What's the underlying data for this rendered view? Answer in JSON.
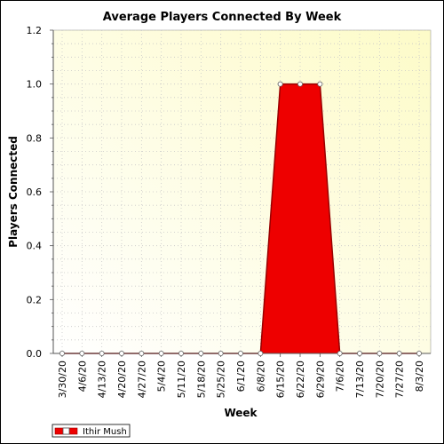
{
  "chart_data": {
    "type": "area",
    "title": "Average Players Connected By Week",
    "xlabel": "Week",
    "ylabel": "Players Connected",
    "categories": [
      "3/30/20",
      "4/6/20",
      "4/13/20",
      "4/20/20",
      "4/27/20",
      "5/4/20",
      "5/11/20",
      "5/18/20",
      "5/25/20",
      "6/1/20",
      "6/8/20",
      "6/15/20",
      "6/22/20",
      "6/29/20",
      "7/6/20",
      "7/13/20",
      "7/20/20",
      "7/27/20",
      "8/3/20"
    ],
    "series": [
      {
        "name": "Ithir Mush",
        "values": [
          0,
          0,
          0,
          0,
          0,
          0,
          0,
          0,
          0,
          0,
          0,
          1.0,
          1.0,
          1.0,
          0,
          0,
          0,
          0,
          0
        ]
      }
    ],
    "ylim": [
      0,
      1.2
    ],
    "yticks": [
      "0.0",
      "0.2",
      "0.4",
      "0.6",
      "0.8",
      "1.0",
      "1.2"
    ],
    "grid": true,
    "legend_position": "bottom-left",
    "colors": {
      "series_fill": "#ee0000",
      "series_line": "#990000",
      "plot_bg_light": "#fffff0",
      "plot_bg_warm": "#fdfcd2",
      "grid": "#c8c8c8"
    }
  }
}
